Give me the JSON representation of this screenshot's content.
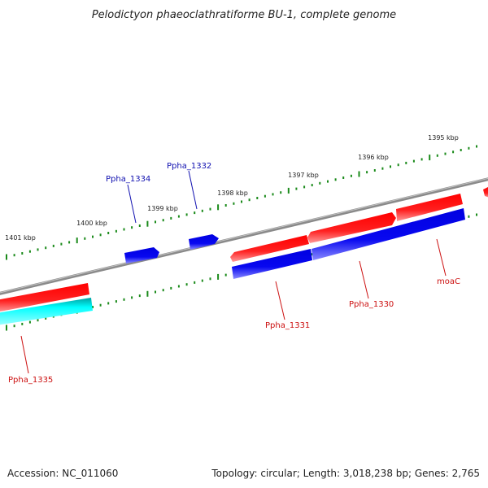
{
  "title": "Pelodictyon phaeoclathratiforme BU-1, complete genome",
  "footer": {
    "accession": "Accession: NC_011060",
    "summary": "Topology: circular; Length: 3,018,238 bp; Genes: 2,765"
  },
  "scale": {
    "tick_labels": [
      "1395 kbp",
      "1396 kbp",
      "1397 kbp",
      "1398 kbp",
      "1399 kbp",
      "1400 kbp",
      "1401 kbp"
    ]
  },
  "genes": {
    "labels_top": [
      "Ppha_1334",
      "Ppha_1332"
    ],
    "labels_bottom": [
      "Ppha_1331",
      "Ppha_1330",
      "moaC",
      "Ppha_1335"
    ]
  },
  "colors": {
    "backbone": "#8a8a8a",
    "forward_red": "#ff1a1a",
    "reverse_blue": "#1010e0",
    "cyan": "#00ffff",
    "tick": "#1a8a1a",
    "label_blue": "#1010b0",
    "label_red": "#cc1010"
  }
}
